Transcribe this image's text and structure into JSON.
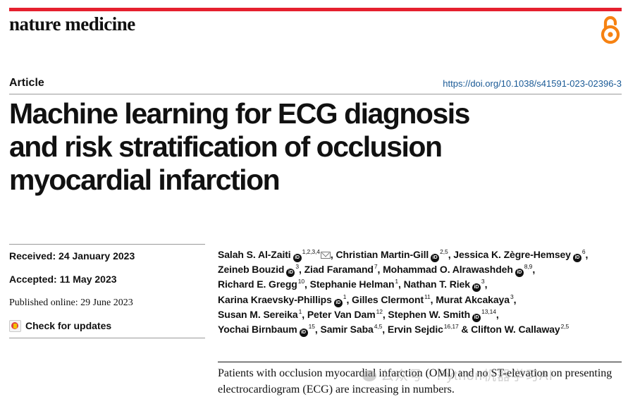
{
  "header": {
    "journal": "nature medicine",
    "article_type": "Article",
    "doi": "https://doi.org/10.1038/s41591-023-02396-3",
    "accent_color": "#e5202e",
    "open_access_icon": "open-access-icon"
  },
  "title": [
    "Machine learning for ECG diagnosis",
    "and risk stratification of occlusion",
    "myocardial infarction"
  ],
  "dates": {
    "received": "Received: 24 January 2023",
    "accepted": "Accepted: 11 May 2023",
    "published": "Published online: 29 June 2023",
    "check_updates": "Check for updates"
  },
  "authors": [
    {
      "name": "Salah S. Al-Zaiti",
      "orcid": true,
      "sup": "1,2,3,4",
      "mail": true
    },
    {
      "name": "Christian Martin-Gill",
      "orcid": true,
      "sup": "2,5"
    },
    {
      "name": "Jessica K. Zègre-Hemsey",
      "orcid": true,
      "sup": "6"
    },
    {
      "name": "Zeineb Bouzid",
      "orcid": true,
      "sup": "3"
    },
    {
      "name": "Ziad Faramand",
      "orcid": false,
      "sup": "7"
    },
    {
      "name": "Mohammad O. Alrawashdeh",
      "orcid": true,
      "sup": "8,9"
    },
    {
      "name": "Richard E. Gregg",
      "orcid": false,
      "sup": "10"
    },
    {
      "name": "Stephanie Helman",
      "orcid": false,
      "sup": "1"
    },
    {
      "name": "Nathan T. Riek",
      "orcid": true,
      "sup": "3"
    },
    {
      "name": "Karina Kraevsky-Phillips",
      "orcid": true,
      "sup": "1"
    },
    {
      "name": "Gilles Clermont",
      "orcid": false,
      "sup": "11"
    },
    {
      "name": "Murat Akcakaya",
      "orcid": false,
      "sup": "3"
    },
    {
      "name": "Susan M. Sereika",
      "orcid": false,
      "sup": "1"
    },
    {
      "name": "Peter Van Dam",
      "orcid": false,
      "sup": "12"
    },
    {
      "name": "Stephen W. Smith",
      "orcid": true,
      "sup": "13,14"
    },
    {
      "name": "Yochai Birnbaum",
      "orcid": true,
      "sup": "15"
    },
    {
      "name": "Samir Saba",
      "orcid": false,
      "sup": "4,5"
    },
    {
      "name": "Ervin Sejdic",
      "orcid": false,
      "sup": "16,17"
    },
    {
      "name": "Clifton W. Callaway",
      "orcid": false,
      "sup": "2,5"
    }
  ],
  "author_lines": [
    [
      0,
      1,
      2
    ],
    [
      3,
      4,
      5
    ],
    [
      6,
      7,
      8
    ],
    [
      9,
      10,
      11
    ],
    [
      12,
      13,
      14
    ],
    [
      15,
      16,
      17,
      18
    ]
  ],
  "orcid_label": "iD",
  "abstract": "Patients with occlusion myocardial infarction (OMI) and no ST-elevation on presenting electrocardiogram (ECG) are increasing in numbers.",
  "watermark": "公众号 · Python机器学习AI"
}
